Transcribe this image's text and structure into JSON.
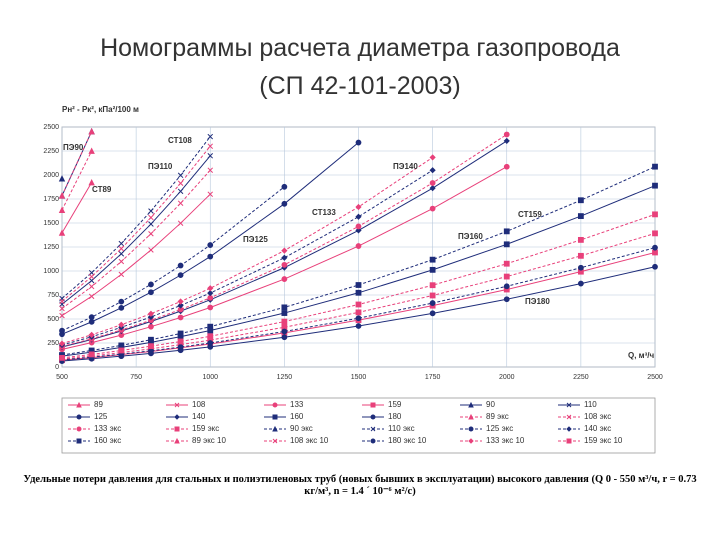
{
  "chart_data": {
    "type": "line",
    "title": "Номограммы расчета диаметра газопровода",
    "subtitle": "(СП 42-101-2003)",
    "y_label": "Рн² - Рк², кПа²/100 м",
    "x_label": "Q, м³/ч",
    "caption": "Удельные потери давления для стальных и полиэтиленовых труб (новых бывших в эксплуатации) высокого давления (Q 0 - 550 м³/ч, r = 0.73 кг/м³, n = 1.4 ´ 10⁻⁶ м²/с)",
    "grid": true,
    "xlim": [
      500,
      2500
    ],
    "xticks": [
      500,
      750,
      1000,
      1250,
      1500,
      1750,
      2000,
      2250,
      2500
    ],
    "ylim": [
      0,
      2500
    ],
    "yticks": [
      0,
      250,
      500,
      750,
      1000,
      1250,
      1500,
      1750,
      2000,
      2250,
      2500
    ],
    "x": [
      500,
      600,
      700,
      800,
      900,
      1000,
      1250,
      1500,
      1750,
      2000,
      2250,
      2500
    ],
    "series": [
      {
        "name": "89",
        "color": "#e8407a",
        "marker": "triangle",
        "dashed": false,
        "values": [
          1397,
          1922,
          null,
          null,
          null,
          null,
          null,
          null,
          null,
          null,
          null,
          null
        ]
      },
      {
        "name": "108",
        "color": "#e8407a",
        "marker": "cross",
        "dashed": false,
        "values": [
          535,
          736,
          965,
          1219,
          1498,
          1800,
          null,
          null,
          null,
          null,
          null,
          null
        ]
      },
      {
        "name": "133",
        "color": "#e8407a",
        "marker": "circle",
        "dashed": false,
        "values": [
          184,
          254,
          332,
          420,
          516,
          620,
          916,
          1260,
          1650,
          2086,
          null,
          null
        ]
      },
      {
        "name": "159",
        "color": "#e8407a",
        "marker": "square",
        "dashed": false,
        "values": [
          71,
          98,
          129,
          162,
          200,
          240,
          355,
          488,
          639,
          807,
          993,
          1193
        ]
      },
      {
        "name": "90",
        "color": "#1f2d7a",
        "marker": "triangle",
        "dashed": false,
        "values": [
          1784,
          2454,
          null,
          null,
          null,
          null,
          null,
          null,
          null,
          null,
          null,
          null
        ]
      },
      {
        "name": "110",
        "color": "#1f2d7a",
        "marker": "cross",
        "dashed": false,
        "values": [
          654,
          900,
          1179,
          1489,
          1830,
          2200,
          null,
          null,
          null,
          null,
          null,
          null
        ]
      },
      {
        "name": "125",
        "color": "#1f2d7a",
        "marker": "circle",
        "dashed": false,
        "values": [
          342,
          470,
          616,
          779,
          957,
          1150,
          1700,
          2338,
          null,
          null,
          null,
          null
        ]
      },
      {
        "name": "140",
        "color": "#1f2d7a",
        "marker": "diamond",
        "dashed": false,
        "values": [
          208,
          286,
          375,
          474,
          582,
          700,
          1035,
          1423,
          1863,
          2355,
          null,
          null
        ]
      },
      {
        "name": "160",
        "color": "#1f2d7a",
        "marker": "square",
        "dashed": false,
        "values": [
          113,
          155,
          204,
          257,
          316,
          380,
          562,
          773,
          1012,
          1278,
          1572,
          1889
        ]
      },
      {
        "name": "180",
        "color": "#1f2d7a",
        "marker": "circle",
        "dashed": false,
        "values": [
          62,
          86,
          113,
          142,
          175,
          210,
          310,
          427,
          559,
          706,
          869,
          1044
        ]
      },
      {
        "name": "89 экс",
        "color": "#e8407a",
        "marker": "triangle",
        "dashed": true,
        "values": [
          1635,
          2250,
          null,
          null,
          null,
          null,
          null,
          null,
          null,
          null,
          null,
          null
        ]
      },
      {
        "name": "108 экс",
        "color": "#e8407a",
        "marker": "cross",
        "dashed": true,
        "values": [
          609,
          838,
          1099,
          1388,
          1706,
          2050,
          null,
          null,
          null,
          null,
          null,
          null
        ]
      },
      {
        "name": "133 экс",
        "color": "#e8407a",
        "marker": "circle",
        "dashed": true,
        "values": [
          214,
          294,
          386,
          487,
          599,
          720,
          1064,
          1464,
          1917,
          2422,
          null,
          null
        ]
      },
      {
        "name": "159 экс",
        "color": "#e8407a",
        "marker": "square",
        "dashed": true,
        "values": [
          83,
          115,
          150,
          190,
          233,
          280,
          414,
          569,
          745,
          942,
          1158,
          1392
        ]
      },
      {
        "name": "90 экс",
        "color": "#1f2d7a",
        "marker": "triangle",
        "dashed": true,
        "values": [
          1962,
          null,
          null,
          null,
          null,
          null,
          null,
          null,
          null,
          null,
          null,
          null
        ]
      },
      {
        "name": "110 экс",
        "color": "#1f2d7a",
        "marker": "cross",
        "dashed": true,
        "values": [
          714,
          982,
          1286,
          1625,
          1997,
          2400,
          null,
          null,
          null,
          null,
          null,
          null
        ]
      },
      {
        "name": "125 экс",
        "color": "#1f2d7a",
        "marker": "circle",
        "dashed": true,
        "values": [
          378,
          519,
          681,
          860,
          1057,
          1270,
          1877,
          null,
          null,
          null,
          null,
          null
        ]
      },
      {
        "name": "140 экс",
        "color": "#1f2d7a",
        "marker": "diamond",
        "dashed": true,
        "values": [
          229,
          315,
          413,
          521,
          641,
          770,
          1138,
          1565,
          2050,
          null,
          null,
          null
        ]
      },
      {
        "name": "160 экс",
        "color": "#1f2d7a",
        "marker": "square",
        "dashed": true,
        "values": [
          125,
          172,
          225,
          284,
          349,
          420,
          621,
          854,
          1118,
          1413,
          1737,
          2087
        ]
      },
      {
        "name": "89 экс 10",
        "color": "#e8407a",
        "marker": "triangle",
        "dashed": true,
        "values": [
          1784,
          2454,
          null,
          null,
          null,
          null,
          null,
          null,
          null,
          null,
          null,
          null
        ]
      },
      {
        "name": "108 экс 10",
        "color": "#e8407a",
        "marker": "cross",
        "dashed": true,
        "values": [
          684,
          941,
          1233,
          1557,
          1914,
          2300,
          null,
          null,
          null,
          null,
          null,
          null
        ]
      },
      {
        "name": "180 экс 10",
        "color": "#1f2d7a",
        "marker": "circle",
        "dashed": true,
        "values": [
          74,
          102,
          134,
          169,
          208,
          250,
          370,
          508,
          666,
          841,
          1034,
          1243
        ]
      },
      {
        "name": "133 экс 10",
        "color": "#e8407a",
        "marker": "diamond",
        "dashed": true,
        "values": [
          244,
          335,
          440,
          555,
          682,
          820,
          1212,
          1667,
          2183,
          null,
          null,
          null
        ]
      },
      {
        "name": "159 экс 10",
        "color": "#e8407a",
        "marker": "square",
        "dashed": true,
        "values": [
          95,
          131,
          172,
          217,
          266,
          320,
          473,
          651,
          852,
          1076,
          1324,
          1590
        ]
      }
    ],
    "annotations": [
      "ПЭ90",
      "СТ108",
      "ПЭ110",
      "СТ89",
      "ПЭ140",
      "СТ133",
      "ПЭ125",
      "СТ159",
      "ПЭ160",
      "ПЭ180"
    ]
  }
}
